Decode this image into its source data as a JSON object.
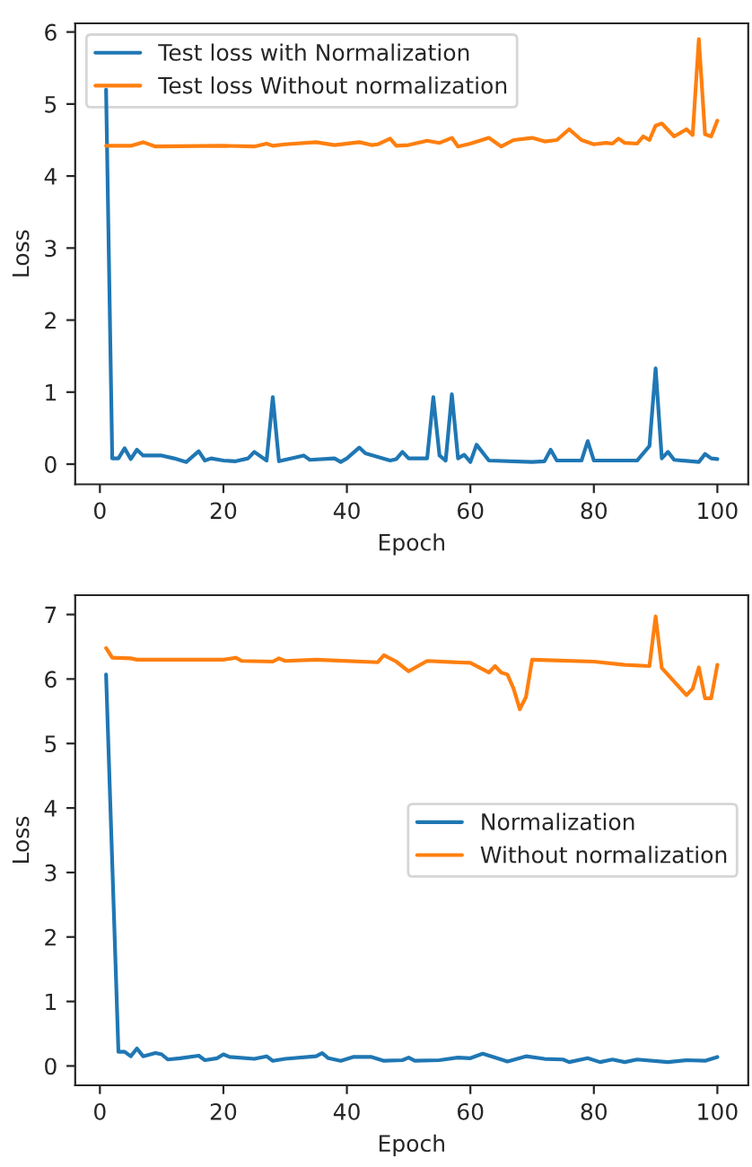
{
  "chart_data": [
    {
      "type": "line",
      "xlabel": "Epoch",
      "ylabel": "Loss",
      "xlim": [
        -4,
        105
      ],
      "xticks": [
        0,
        20,
        40,
        60,
        80,
        100
      ],
      "ylim": [
        -0.28,
        6.12
      ],
      "yticks": [
        0,
        1,
        2,
        3,
        4,
        5,
        6
      ],
      "grid": false,
      "legend": "top left",
      "marker": "none",
      "line_style": "solid",
      "series": [
        {
          "name": "Test loss with Normalization",
          "color": "#1f77b4",
          "x": [
            1,
            2,
            3,
            4,
            5,
            6,
            7,
            10,
            12,
            14,
            16,
            17,
            18,
            20,
            22,
            24,
            25,
            27,
            28,
            29,
            33,
            34,
            38,
            39,
            40,
            42,
            43,
            47,
            48,
            49,
            50,
            53,
            54,
            55,
            56,
            57,
            58,
            59,
            60,
            61,
            63,
            70,
            72,
            73,
            74,
            78,
            79,
            80,
            87,
            89,
            90,
            91,
            92,
            93,
            97,
            98,
            99,
            100
          ],
          "values": [
            5.2,
            0.08,
            0.08,
            0.22,
            0.07,
            0.2,
            0.12,
            0.12,
            0.08,
            0.03,
            0.18,
            0.05,
            0.08,
            0.05,
            0.04,
            0.08,
            0.17,
            0.05,
            0.93,
            0.04,
            0.12,
            0.06,
            0.08,
            0.03,
            0.08,
            0.23,
            0.15,
            0.05,
            0.07,
            0.17,
            0.08,
            0.08,
            0.93,
            0.12,
            0.05,
            0.97,
            0.08,
            0.13,
            0.03,
            0.27,
            0.05,
            0.03,
            0.04,
            0.2,
            0.05,
            0.05,
            0.32,
            0.05,
            0.05,
            0.25,
            1.33,
            0.08,
            0.17,
            0.06,
            0.03,
            0.14,
            0.08,
            0.07
          ]
        },
        {
          "name": "Test loss Without normalization",
          "color": "#ff7f0e",
          "x": [
            1,
            5,
            7,
            9,
            20,
            25,
            27,
            28,
            30,
            35,
            38,
            42,
            44,
            45,
            47,
            48,
            50,
            53,
            55,
            57,
            58,
            60,
            63,
            65,
            67,
            70,
            72,
            74,
            76,
            78,
            80,
            82,
            83,
            84,
            85,
            87,
            88,
            89,
            90,
            91,
            93,
            95,
            96,
            97,
            98,
            99,
            100
          ],
          "values": [
            4.42,
            4.42,
            4.47,
            4.41,
            4.42,
            4.41,
            4.45,
            4.42,
            4.44,
            4.47,
            4.43,
            4.47,
            4.43,
            4.44,
            4.52,
            4.42,
            4.43,
            4.49,
            4.46,
            4.53,
            4.41,
            4.45,
            4.53,
            4.41,
            4.5,
            4.53,
            4.48,
            4.5,
            4.65,
            4.5,
            4.44,
            4.46,
            4.45,
            4.52,
            4.46,
            4.45,
            4.55,
            4.5,
            4.7,
            4.73,
            4.55,
            4.65,
            4.57,
            5.9,
            4.58,
            4.55,
            4.77
          ]
        }
      ]
    },
    {
      "type": "line",
      "xlabel": "Epoch",
      "ylabel": "Loss",
      "xlim": [
        -4,
        105
      ],
      "xticks": [
        0,
        20,
        40,
        60,
        80,
        100
      ],
      "ylim": [
        -0.3,
        7.3
      ],
      "yticks": [
        0,
        1,
        2,
        3,
        4,
        5,
        6,
        7
      ],
      "grid": false,
      "legend": "center right",
      "marker": "none",
      "line_style": "solid",
      "series": [
        {
          "name": "Normalization",
          "color": "#1f77b4",
          "x": [
            1,
            3,
            4,
            5,
            6,
            7,
            9,
            10,
            11,
            13,
            16,
            17,
            19,
            20,
            21,
            25,
            27,
            28,
            30,
            35,
            36,
            37,
            39,
            41,
            44,
            46,
            49,
            50,
            51,
            55,
            58,
            60,
            62,
            65,
            66,
            69,
            72,
            75,
            76,
            79,
            81,
            83,
            85,
            87,
            92,
            95,
            98,
            100
          ],
          "values": [
            6.07,
            0.22,
            0.22,
            0.15,
            0.27,
            0.15,
            0.2,
            0.18,
            0.1,
            0.12,
            0.16,
            0.09,
            0.12,
            0.18,
            0.14,
            0.11,
            0.15,
            0.08,
            0.11,
            0.15,
            0.2,
            0.12,
            0.08,
            0.14,
            0.14,
            0.08,
            0.09,
            0.13,
            0.08,
            0.09,
            0.13,
            0.12,
            0.19,
            0.1,
            0.07,
            0.15,
            0.11,
            0.1,
            0.06,
            0.12,
            0.06,
            0.1,
            0.06,
            0.1,
            0.06,
            0.09,
            0.08,
            0.14
          ]
        },
        {
          "name": "Without normalization",
          "color": "#ff7f0e",
          "x": [
            1,
            2,
            5,
            6,
            20,
            22,
            23,
            28,
            29,
            30,
            35,
            45,
            46,
            48,
            50,
            53,
            60,
            63,
            64,
            65,
            66,
            67,
            68,
            69,
            70,
            80,
            85,
            89,
            90,
            91,
            95,
            96,
            97,
            98,
            99,
            100
          ],
          "values": [
            6.48,
            6.33,
            6.32,
            6.3,
            6.3,
            6.33,
            6.28,
            6.27,
            6.32,
            6.28,
            6.3,
            6.26,
            6.37,
            6.27,
            6.12,
            6.28,
            6.25,
            6.1,
            6.2,
            6.1,
            6.07,
            5.85,
            5.53,
            5.72,
            6.3,
            6.27,
            6.22,
            6.2,
            6.97,
            6.17,
            5.75,
            5.85,
            6.18,
            5.7,
            5.7,
            6.22
          ]
        }
      ]
    }
  ]
}
